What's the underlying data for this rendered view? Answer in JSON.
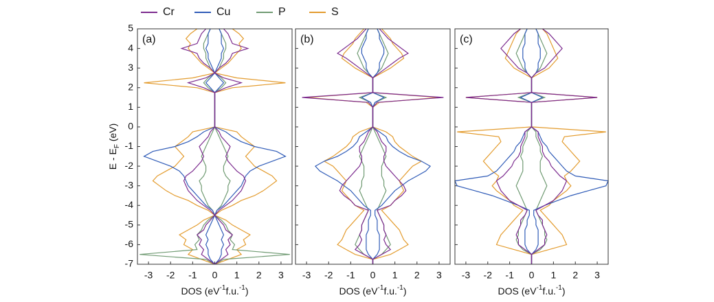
{
  "chart_data": {
    "type": "line",
    "orientation": "horizontal",
    "mirror": true,
    "series": [
      {
        "name": "Cr",
        "color": "#7b2a8e"
      },
      {
        "name": "Cu",
        "color": "#2f5bb7"
      },
      {
        "name": "P",
        "color": "#6f9a72"
      },
      {
        "name": "S",
        "color": "#e39b2d"
      }
    ],
    "y": [
      -7,
      -6.75,
      -6.5,
      -6.25,
      -6,
      -5.75,
      -5.5,
      -5.25,
      -5,
      -4.75,
      -4.5,
      -4.25,
      -4,
      -3.75,
      -3.5,
      -3.25,
      -3,
      -2.75,
      -2.5,
      -2.25,
      -2,
      -1.75,
      -1.5,
      -1.25,
      -1,
      -0.75,
      -0.5,
      -0.25,
      0,
      0.25,
      0.5,
      0.75,
      1,
      1.25,
      1.5,
      1.75,
      2,
      2.25,
      2.5,
      2.75,
      3,
      3.25,
      3.5,
      3.75,
      4,
      4.25,
      4.5,
      4.75,
      5
    ],
    "ylim": [
      -7,
      5
    ],
    "yticks": [
      5,
      4,
      3,
      2,
      1,
      0,
      -1,
      -2,
      -3,
      -4,
      -5,
      -6,
      -7
    ],
    "ylabel": [
      "E - E",
      "F",
      " (eV)"
    ],
    "xlim": [
      -3.5,
      3.5
    ],
    "xticks": [
      -3,
      -2,
      -1,
      0,
      1,
      2,
      3
    ],
    "xlabel": [
      "DOS (eV",
      "-1",
      "f.u.",
      "-1",
      ")"
    ],
    "panels": [
      {
        "label": "(a)",
        "values": [
          [
            0,
            0.3,
            0.6,
            0.5,
            0.7,
            0.6,
            0.8,
            0.5,
            0.4,
            0.2,
            0,
            0.2,
            0.5,
            0.8,
            1.0,
            1.2,
            1.3,
            1.4,
            1.3,
            1.0,
            0.8,
            0.6,
            0.5,
            0.6,
            0.7,
            0.5,
            0.3,
            0.2,
            0,
            0,
            0,
            0,
            0,
            0,
            0,
            0,
            0.5,
            1.2,
            0.4,
            0,
            0.2,
            0.5,
            0.7,
            0.8,
            1.5,
            0.8,
            0.7,
            0.6,
            0.4
          ],
          [
            0,
            0.2,
            0.3,
            0.3,
            0.4,
            0.3,
            0.4,
            0.3,
            0.2,
            0.1,
            0,
            0.1,
            0.4,
            0.6,
            0.8,
            1.0,
            1.2,
            1.3,
            1.4,
            1.6,
            2.0,
            2.6,
            3.2,
            2.8,
            1.8,
            1.2,
            0.8,
            0.5,
            0,
            0,
            0,
            0,
            0,
            0,
            0,
            0,
            0.2,
            0.4,
            0.2,
            0,
            0.1,
            0.2,
            0.3,
            0.3,
            0.4,
            0.3,
            0.3,
            0.3,
            0.2
          ],
          [
            0,
            0.4,
            3.4,
            0.8,
            0.9,
            0.7,
            0.8,
            0.6,
            0.5,
            0.3,
            0,
            0.1,
            0.3,
            0.4,
            0.5,
            0.6,
            0.6,
            0.7,
            0.5,
            0.4,
            0.4,
            0.5,
            0.6,
            0.5,
            0.4,
            0.3,
            0.2,
            0.1,
            0,
            0,
            0,
            0,
            0,
            0,
            0,
            0,
            0.3,
            0.5,
            0.3,
            0,
            0.2,
            0.3,
            0.4,
            0.4,
            0.5,
            0.5,
            0.4,
            0.3,
            0.2
          ],
          [
            0,
            0.6,
            1.2,
            1.0,
            1.4,
            1.3,
            1.6,
            1.2,
            0.8,
            0.5,
            0,
            0.3,
            0.8,
            1.2,
            1.8,
            2.2,
            2.5,
            2.8,
            2.6,
            2.2,
            1.8,
            1.6,
            1.4,
            1.6,
            1.8,
            1.5,
            1.2,
            1.0,
            0,
            0,
            0,
            0,
            0,
            0,
            0,
            0,
            0.8,
            3.2,
            1.0,
            0,
            0.3,
            0.6,
            0.8,
            1.0,
            1.2,
            1.1,
            1.3,
            1.1,
            0.8
          ]
        ]
      },
      {
        "label": "(b)",
        "values": [
          [
            0,
            0,
            0.4,
            0.8,
            0.6,
            0.5,
            0.6,
            0.5,
            0.5,
            0.4,
            0.3,
            0.2,
            0.8,
            1.0,
            1.3,
            1.5,
            1.4,
            1.2,
            1.0,
            0.8,
            0.6,
            0.5,
            0.5,
            0.6,
            0.6,
            0.4,
            0.3,
            0.2,
            0,
            0,
            0,
            0,
            0,
            0.2,
            3.2,
            0,
            0,
            0,
            0,
            0.3,
            0.6,
            0.9,
            1.2,
            1.6,
            1.3,
            1.0,
            0.7,
            0.5,
            0.3
          ],
          [
            0,
            0,
            0.2,
            0.3,
            0.3,
            0.3,
            0.3,
            0.2,
            0.2,
            0.2,
            0.1,
            0.1,
            0.4,
            0.6,
            0.8,
            1.0,
            1.3,
            1.6,
            2.0,
            2.4,
            2.6,
            2.2,
            1.6,
            1.2,
            0.9,
            0.7,
            0.6,
            0.3,
            0,
            0,
            0,
            0,
            0,
            0.1,
            0.5,
            0,
            0,
            0,
            0,
            0.2,
            0.3,
            0.3,
            0.4,
            0.5,
            0.5,
            0.4,
            0.3,
            0.3,
            0.2
          ],
          [
            0,
            0,
            0.4,
            0.6,
            0.8,
            0.7,
            0.6,
            0.5,
            0.5,
            0.4,
            0.3,
            0.2,
            0.3,
            0.4,
            0.5,
            0.6,
            0.5,
            0.5,
            0.4,
            0.4,
            0.4,
            0.5,
            0.6,
            0.5,
            0.4,
            0.3,
            0.2,
            0.1,
            0,
            0,
            0,
            0,
            0,
            0.1,
            0.6,
            0,
            0,
            0,
            0,
            0.2,
            0.4,
            0.5,
            0.6,
            0.7,
            0.6,
            0.5,
            0.4,
            0.3,
            0.2
          ],
          [
            0,
            0,
            0.8,
            1.2,
            1.6,
            1.4,
            1.3,
            1.2,
            1.0,
            0.8,
            0.6,
            0.4,
            0.8,
            1.0,
            1.2,
            1.4,
            1.3,
            1.2,
            1.4,
            1.6,
            1.8,
            2.2,
            1.8,
            1.5,
            1.2,
            1.0,
            0.9,
            0.6,
            0,
            0,
            0,
            0,
            0,
            0.3,
            3.0,
            0,
            0,
            0,
            0,
            0.4,
            0.8,
            1.1,
            1.4,
            1.3,
            1.1,
            0.9,
            0.8,
            0.6,
            0.4
          ]
        ]
      },
      {
        "label": "(c)",
        "values": [
          [
            0,
            0,
            0,
            0.3,
            0.6,
            0.6,
            0.7,
            0.6,
            0.5,
            0.5,
            0.3,
            0.2,
            0.6,
            1.0,
            1.2,
            1.4,
            1.5,
            1.6,
            1.3,
            1.1,
            0.9,
            0.8,
            0.6,
            0.5,
            0.5,
            0.4,
            0.3,
            0.3,
            0,
            0,
            0,
            0,
            0,
            0,
            3.0,
            0,
            0,
            0,
            0,
            0.2,
            0.6,
            0.8,
            1.0,
            1.2,
            1.4,
            1.2,
            1.0,
            0.8,
            0.5
          ],
          [
            0,
            0,
            0,
            0.2,
            0.3,
            0.3,
            0.3,
            0.3,
            0.2,
            0.2,
            0.1,
            0.1,
            0.6,
            1.2,
            1.8,
            2.6,
            3.4,
            3.5,
            2.0,
            1.6,
            1.4,
            1.2,
            1.0,
            0.8,
            0.7,
            0.5,
            0.4,
            0.3,
            0,
            0,
            0,
            0,
            0,
            0,
            0.5,
            0,
            0,
            0,
            0,
            0.2,
            0.3,
            0.3,
            0.4,
            0.4,
            0.4,
            0.3,
            0.3,
            0.3,
            0.2
          ],
          [
            0,
            0,
            0,
            0.4,
            0.6,
            0.7,
            0.6,
            0.6,
            0.5,
            0.4,
            0.3,
            0.2,
            0.3,
            0.4,
            0.5,
            0.6,
            0.7,
            0.6,
            0.5,
            0.4,
            0.4,
            0.4,
            0.5,
            0.4,
            0.4,
            0.3,
            0.2,
            0.2,
            0,
            0,
            0,
            0,
            0,
            0,
            0.6,
            0,
            0,
            0,
            0,
            0.2,
            0.4,
            0.5,
            0.6,
            0.7,
            0.6,
            0.5,
            0.4,
            0.3,
            0.2
          ],
          [
            0,
            0,
            0,
            0.8,
            1.6,
            1.5,
            1.4,
            1.2,
            1.0,
            0.8,
            0.6,
            0.4,
            0.8,
            1.0,
            1.3,
            1.6,
            1.8,
            1.6,
            1.5,
            1.8,
            2.0,
            2.2,
            2.0,
            1.8,
            1.6,
            1.4,
            1.5,
            3.4,
            0,
            0,
            0,
            0,
            0,
            0,
            3.0,
            0,
            0,
            0,
            0,
            0.4,
            0.8,
            1.0,
            1.2,
            1.1,
            1.0,
            0.9,
            0.8,
            0.7,
            0.5
          ]
        ]
      }
    ]
  }
}
